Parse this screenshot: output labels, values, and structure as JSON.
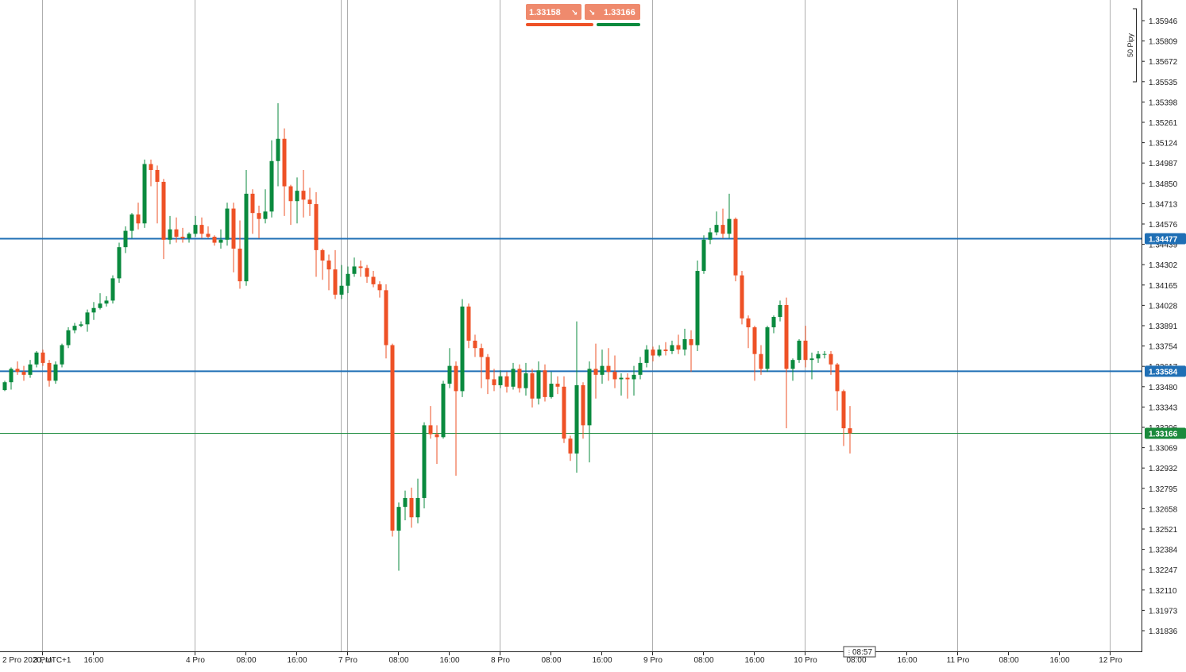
{
  "chart_data": {
    "type": "candlestick",
    "timezone_label": "2 Pro 2020, UTC+1",
    "y_axis": {
      "range": [
        1.3175,
        1.3605
      ],
      "tick_labels": [
        "1.35946",
        "1.35809",
        "1.35672",
        "1.35535",
        "1.35398",
        "1.35261",
        "1.35124",
        "1.34987",
        "1.34850",
        "1.34713",
        "1.34576",
        "1.34439",
        "1.34302",
        "1.34165",
        "1.34028",
        "1.33891",
        "1.33754",
        "1.33617",
        "1.33480",
        "1.33343",
        "1.33206",
        "1.33069",
        "1.32932",
        "1.32795",
        "1.32658",
        "1.32521",
        "1.32384",
        "1.32247",
        "1.32110",
        "1.31973",
        "1.31836"
      ]
    },
    "x_axis": {
      "tick_labels": [
        "3 Pro",
        "16:00",
        "4 Pro",
        "08:00",
        "16:00",
        "7 Pro",
        "08:00",
        "16:00",
        "8 Pro",
        "08:00",
        "16:00",
        "9 Pro",
        "08:00",
        "16:00",
        "10 Pro",
        "08:00",
        "16:00",
        "11 Pro",
        "08:00",
        "16:00",
        "12 Pro"
      ]
    },
    "horizontal_lines": [
      {
        "value": 1.34477,
        "label": "1.34477",
        "color": "#1f6fb5"
      },
      {
        "value": 1.33584,
        "label": "1.33584",
        "color": "#1f6fb5"
      },
      {
        "value": 1.33166,
        "label": "1.33166",
        "color": "#1a8a3c"
      }
    ],
    "pip_scale_label": "50 Pipy",
    "current_time_label": "08:57",
    "candles": [
      [
        1.33457,
        1.3351,
        1.3345,
        1.3352
      ],
      [
        1.3351,
        1.336,
        1.3346,
        1.3361
      ],
      [
        1.336,
        1.3358,
        1.3356,
        1.3365
      ],
      [
        1.3358,
        1.3356,
        1.3352,
        1.3362
      ],
      [
        1.3356,
        1.3363,
        1.3354,
        1.3366
      ],
      [
        1.3363,
        1.3371,
        1.3361,
        1.3372
      ],
      [
        1.3371,
        1.3364,
        1.3362,
        1.3373
      ],
      [
        1.3364,
        1.3352,
        1.3348,
        1.3366
      ],
      [
        1.3352,
        1.3363,
        1.335,
        1.3365
      ],
      [
        1.3363,
        1.3376,
        1.3361,
        1.3377
      ],
      [
        1.3376,
        1.3386,
        1.3374,
        1.3388
      ],
      [
        1.3386,
        1.3389,
        1.3384,
        1.3391
      ],
      [
        1.3389,
        1.339,
        1.3388,
        1.3392
      ],
      [
        1.339,
        1.3398,
        1.3385,
        1.34
      ],
      [
        1.3398,
        1.3401,
        1.3393,
        1.3405
      ],
      [
        1.3401,
        1.3404,
        1.34,
        1.3411
      ],
      [
        1.3404,
        1.3406,
        1.3402,
        1.3409
      ],
      [
        1.3406,
        1.3421,
        1.3404,
        1.3423
      ],
      [
        1.3421,
        1.3442,
        1.3418,
        1.3445
      ],
      [
        1.3442,
        1.3453,
        1.3438,
        1.3456
      ],
      [
        1.3453,
        1.3464,
        1.3448,
        1.3465
      ],
      [
        1.3464,
        1.3458,
        1.3454,
        1.3472
      ],
      [
        1.3458,
        1.3498,
        1.3455,
        1.3501
      ],
      [
        1.3498,
        1.3494,
        1.3483,
        1.3501
      ],
      [
        1.3494,
        1.3486,
        1.3458,
        1.3497
      ],
      [
        1.3486,
        1.3447,
        1.3434,
        1.3488
      ],
      [
        1.3447,
        1.3454,
        1.3444,
        1.3463
      ],
      [
        1.3454,
        1.3449,
        1.3445,
        1.3462
      ],
      [
        1.3449,
        1.3448,
        1.3445,
        1.3455
      ],
      [
        1.3448,
        1.3451,
        1.3445,
        1.3452
      ],
      [
        1.3451,
        1.3457,
        1.3449,
        1.3463
      ],
      [
        1.3457,
        1.3451,
        1.3448,
        1.3462
      ],
      [
        1.3451,
        1.3449,
        1.3448,
        1.3456
      ],
      [
        1.3449,
        1.3445,
        1.3443,
        1.345
      ],
      [
        1.3445,
        1.3447,
        1.3441,
        1.3454
      ],
      [
        1.3447,
        1.3468,
        1.3443,
        1.3472
      ],
      [
        1.3468,
        1.3441,
        1.3425,
        1.3472
      ],
      [
        1.3441,
        1.3419,
        1.3414,
        1.346
      ],
      [
        1.3419,
        1.3478,
        1.3416,
        1.3494
      ],
      [
        1.3478,
        1.3465,
        1.3451,
        1.3481
      ],
      [
        1.3465,
        1.3461,
        1.3448,
        1.347
      ],
      [
        1.3461,
        1.3466,
        1.3458,
        1.3481
      ],
      [
        1.3466,
        1.35,
        1.3462,
        1.3514
      ],
      [
        1.35,
        1.3515,
        1.3483,
        1.3539
      ],
      [
        1.3515,
        1.3483,
        1.3463,
        1.3522
      ],
      [
        1.3483,
        1.3473,
        1.3457,
        1.3484
      ],
      [
        1.3473,
        1.348,
        1.3458,
        1.3489
      ],
      [
        1.348,
        1.3474,
        1.3462,
        1.3494
      ],
      [
        1.3474,
        1.3471,
        1.3463,
        1.3482
      ],
      [
        1.3471,
        1.344,
        1.3422,
        1.3479
      ],
      [
        1.344,
        1.3433,
        1.342,
        1.3441
      ],
      [
        1.3433,
        1.3427,
        1.3413,
        1.3437
      ],
      [
        1.3427,
        1.341,
        1.3407,
        1.344
      ],
      [
        1.341,
        1.3416,
        1.3407,
        1.343
      ],
      [
        1.3416,
        1.3424,
        1.3411,
        1.3429
      ],
      [
        1.3424,
        1.3429,
        1.3422,
        1.3435
      ],
      [
        1.3429,
        1.3428,
        1.3422,
        1.3433
      ],
      [
        1.3428,
        1.3422,
        1.3418,
        1.343
      ],
      [
        1.3422,
        1.3417,
        1.3415,
        1.3426
      ],
      [
        1.3417,
        1.3413,
        1.3408,
        1.3419
      ],
      [
        1.3413,
        1.3376,
        1.3367,
        1.3417
      ],
      [
        1.3376,
        1.3251,
        1.3247,
        1.3377
      ],
      [
        1.3251,
        1.3267,
        1.3224,
        1.327
      ],
      [
        1.3267,
        1.3273,
        1.3258,
        1.3278
      ],
      [
        1.3273,
        1.326,
        1.3253,
        1.328
      ],
      [
        1.326,
        1.3273,
        1.3256,
        1.3286
      ],
      [
        1.3273,
        1.3322,
        1.3266,
        1.3324
      ],
      [
        1.3322,
        1.3316,
        1.3313,
        1.3335
      ],
      [
        1.3316,
        1.3314,
        1.3296,
        1.3322
      ],
      [
        1.3314,
        1.335,
        1.3313,
        1.3352
      ],
      [
        1.335,
        1.3362,
        1.3347,
        1.3374
      ],
      [
        1.3362,
        1.3345,
        1.3288,
        1.3365
      ],
      [
        1.3345,
        1.3402,
        1.3341,
        1.3407
      ],
      [
        1.3402,
        1.3379,
        1.3374,
        1.3404
      ],
      [
        1.3379,
        1.3374,
        1.3368,
        1.3383
      ],
      [
        1.3374,
        1.3368,
        1.3347,
        1.3377
      ],
      [
        1.3368,
        1.3353,
        1.3343,
        1.337
      ],
      [
        1.3353,
        1.3349,
        1.3345,
        1.336
      ],
      [
        1.3349,
        1.3355,
        1.3347,
        1.3359
      ],
      [
        1.3355,
        1.3348,
        1.3344,
        1.3358
      ],
      [
        1.3348,
        1.336,
        1.3346,
        1.3364
      ],
      [
        1.336,
        1.3347,
        1.3344,
        1.3363
      ],
      [
        1.3347,
        1.3357,
        1.3342,
        1.3364
      ],
      [
        1.3357,
        1.334,
        1.3334,
        1.336
      ],
      [
        1.334,
        1.3359,
        1.3336,
        1.3365
      ],
      [
        1.3359,
        1.3341,
        1.3338,
        1.3363
      ],
      [
        1.3341,
        1.335,
        1.334,
        1.3358
      ],
      [
        1.335,
        1.3348,
        1.3343,
        1.3355
      ],
      [
        1.3348,
        1.3313,
        1.331,
        1.3355
      ],
      [
        1.3313,
        1.3303,
        1.3298,
        1.3315
      ],
      [
        1.3303,
        1.3349,
        1.329,
        1.3392
      ],
      [
        1.3349,
        1.3322,
        1.3313,
        1.3351
      ],
      [
        1.3322,
        1.336,
        1.3297,
        1.3365
      ],
      [
        1.336,
        1.3356,
        1.334,
        1.3377
      ],
      [
        1.3356,
        1.3362,
        1.335,
        1.3373
      ],
      [
        1.3362,
        1.3358,
        1.3352,
        1.3374
      ],
      [
        1.3358,
        1.3353,
        1.3347,
        1.3369
      ],
      [
        1.3353,
        1.3354,
        1.3342,
        1.3357
      ],
      [
        1.3354,
        1.3353,
        1.334,
        1.3357
      ],
      [
        1.3353,
        1.3356,
        1.3342,
        1.3362
      ],
      [
        1.3356,
        1.3364,
        1.3353,
        1.3368
      ],
      [
        1.3364,
        1.3373,
        1.3361,
        1.3376
      ],
      [
        1.3373,
        1.3369,
        1.3365,
        1.3375
      ],
      [
        1.3369,
        1.3373,
        1.3368,
        1.3376
      ],
      [
        1.3373,
        1.3372,
        1.3369,
        1.3378
      ],
      [
        1.3372,
        1.3376,
        1.337,
        1.3379
      ],
      [
        1.3376,
        1.3373,
        1.337,
        1.3383
      ],
      [
        1.3373,
        1.338,
        1.3369,
        1.3387
      ],
      [
        1.338,
        1.3376,
        1.3358,
        1.3386
      ],
      [
        1.3376,
        1.3426,
        1.3372,
        1.3433
      ],
      [
        1.3426,
        1.3447,
        1.3424,
        1.345
      ],
      [
        1.3447,
        1.3452,
        1.3444,
        1.3455
      ],
      [
        1.3452,
        1.3457,
        1.345,
        1.3466
      ],
      [
        1.3457,
        1.3451,
        1.3448,
        1.3468
      ],
      [
        1.3451,
        1.3461,
        1.3448,
        1.3478
      ],
      [
        1.3461,
        1.3423,
        1.3419,
        1.3462
      ],
      [
        1.3423,
        1.3394,
        1.339,
        1.3426
      ],
      [
        1.3394,
        1.3388,
        1.3374,
        1.3396
      ],
      [
        1.3388,
        1.337,
        1.3352,
        1.3389
      ],
      [
        1.337,
        1.336,
        1.3356,
        1.3376
      ],
      [
        1.336,
        1.3388,
        1.3358,
        1.3389
      ],
      [
        1.3388,
        1.3395,
        1.3384,
        1.3396
      ],
      [
        1.3395,
        1.3403,
        1.3392,
        1.3406
      ],
      [
        1.3403,
        1.336,
        1.332,
        1.3408
      ],
      [
        1.336,
        1.3366,
        1.3352,
        1.3367
      ],
      [
        1.3366,
        1.3379,
        1.3364,
        1.338
      ],
      [
        1.3379,
        1.3366,
        1.3361,
        1.3389
      ],
      [
        1.3366,
        1.3367,
        1.3353,
        1.3371
      ],
      [
        1.3367,
        1.337,
        1.3364,
        1.3372
      ],
      [
        1.337,
        1.337,
        1.3367,
        1.3372
      ],
      [
        1.337,
        1.3363,
        1.3356,
        1.3372
      ],
      [
        1.3363,
        1.3345,
        1.3332,
        1.3364
      ],
      [
        1.3345,
        1.332,
        1.3308,
        1.3346
      ],
      [
        1.332,
        1.33166,
        1.3303,
        1.3335
      ]
    ],
    "colors": {
      "up": "#0a8a3e",
      "down": "#ee5126",
      "grid": "#9a9a9a"
    },
    "grid": "vertical-only"
  },
  "price_buttons": {
    "sell": {
      "label": "1.33158",
      "color": "#ef8a6d",
      "bar_color": "#ee5126"
    },
    "buy": {
      "label": "1.33166",
      "color": "#ef8a6d",
      "bar_color": "#0a8a3e"
    }
  }
}
